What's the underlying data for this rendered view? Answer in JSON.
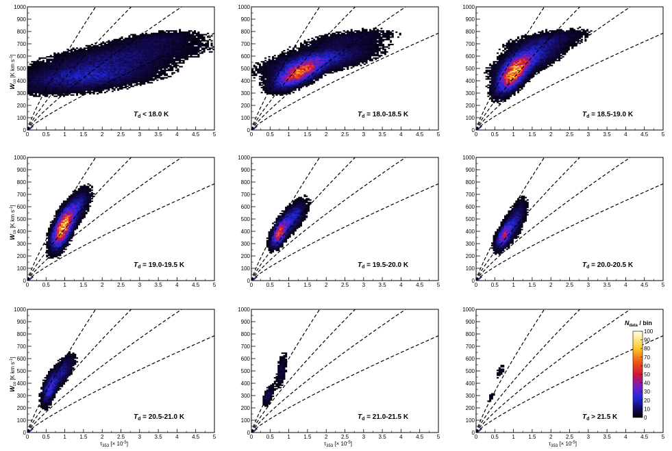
{
  "figure": {
    "ylabel": "W",
    "ylabel_sub": "co",
    "ylabel_unit": "[K km s",
    "ylabel_sup": "-1",
    "ylabel_close": "]",
    "xlabel": "τ",
    "xlabel_sub": "353",
    "xlabel_unit": "[× 10",
    "xlabel_sup": "-5",
    "xlabel_close": "]"
  },
  "chart_data": [
    {
      "type": "heatmap",
      "label_prefix": "T",
      "label_sub": "d",
      "label_text": " < 18.0 K",
      "xlim": [
        0,
        5
      ],
      "ylim": [
        0,
        1000
      ],
      "xticks": [
        "0",
        "0.5",
        "1",
        "1.5",
        "2",
        "2.5",
        "3",
        "3.5",
        "4",
        "4.5",
        "5"
      ],
      "yticks": [
        "0",
        "100",
        "200",
        "300",
        "400",
        "500",
        "600",
        "700",
        "800",
        "900",
        "1000"
      ],
      "blobs": [
        {
          "x": 1.6,
          "y": 440,
          "sx": 0.55,
          "sy": 70,
          "angle": 18,
          "peak": 18
        },
        {
          "x": 2.6,
          "y": 610,
          "sx": 0.65,
          "sy": 60,
          "angle": 25,
          "peak": 10
        },
        {
          "x": 3.5,
          "y": 740,
          "sx": 0.35,
          "sy": 35,
          "angle": 20,
          "peak": 6
        }
      ],
      "dashed_line_slopes": [
        600,
        420,
        300,
        200
      ]
    },
    {
      "type": "heatmap",
      "label_prefix": "T",
      "label_sub": "d",
      "label_text": " = 18.0-18.5 K",
      "xlim": [
        0,
        5
      ],
      "ylim": [
        0,
        1000
      ],
      "xticks": [
        "0",
        "0.5",
        "1",
        "1.5",
        "2",
        "2.5",
        "3",
        "3.5",
        "4",
        "4.5",
        "5"
      ],
      "yticks": [
        "0",
        "100",
        "200",
        "300",
        "400",
        "500",
        "600",
        "700",
        "800",
        "900",
        "1000"
      ],
      "blobs": [
        {
          "x": 1.25,
          "y": 460,
          "sx": 0.22,
          "sy": 45,
          "angle": 40,
          "peak": 60
        },
        {
          "x": 1.8,
          "y": 570,
          "sx": 0.45,
          "sy": 55,
          "angle": 30,
          "peak": 18
        },
        {
          "x": 2.6,
          "y": 740,
          "sx": 0.4,
          "sy": 40,
          "angle": 25,
          "peak": 6
        }
      ],
      "dashed_line_slopes": [
        600,
        420,
        300,
        200
      ]
    },
    {
      "type": "heatmap",
      "label_prefix": "T",
      "label_sub": "d",
      "label_text": " = 18.5-19.0 K",
      "xlim": [
        0,
        5
      ],
      "ylim": [
        0,
        1000
      ],
      "xticks": [
        "0",
        "0.5",
        "1",
        "1.5",
        "2",
        "2.5",
        "3",
        "3.5",
        "4",
        "4.5",
        "5"
      ],
      "yticks": [
        "0",
        "100",
        "200",
        "300",
        "400",
        "500",
        "600",
        "700",
        "800",
        "900",
        "1000"
      ],
      "blobs": [
        {
          "x": 1.0,
          "y": 460,
          "sx": 0.18,
          "sy": 50,
          "angle": 55,
          "peak": 70
        },
        {
          "x": 1.4,
          "y": 580,
          "sx": 0.3,
          "sy": 55,
          "angle": 40,
          "peak": 22
        },
        {
          "x": 1.9,
          "y": 730,
          "sx": 0.35,
          "sy": 40,
          "angle": 30,
          "peak": 8
        }
      ],
      "dashed_line_slopes": [
        600,
        420,
        300,
        200
      ]
    },
    {
      "type": "heatmap",
      "label_prefix": "T",
      "label_sub": "d",
      "label_text": " = 19.0-19.5 K",
      "xlim": [
        0,
        5
      ],
      "ylim": [
        0,
        1000
      ],
      "xticks": [
        "0",
        "0.5",
        "1",
        "1.5",
        "2",
        "2.5",
        "3",
        "3.5",
        "4",
        "4.5",
        "5"
      ],
      "yticks": [
        "0",
        "100",
        "200",
        "300",
        "400",
        "500",
        "600",
        "700",
        "800",
        "900",
        "1000"
      ],
      "blobs": [
        {
          "x": 0.95,
          "y": 430,
          "sx": 0.13,
          "sy": 50,
          "angle": 60,
          "peak": 80
        },
        {
          "x": 1.3,
          "y": 590,
          "sx": 0.15,
          "sy": 50,
          "angle": 55,
          "peak": 18
        }
      ],
      "dashed_line_slopes": [
        600,
        420,
        300,
        200
      ]
    },
    {
      "type": "heatmap",
      "label_prefix": "T",
      "label_sub": "d",
      "label_text": " = 19.5-20.0 K",
      "xlim": [
        0,
        5
      ],
      "ylim": [
        0,
        1000
      ],
      "xticks": [
        "0",
        "0.5",
        "1",
        "1.5",
        "2",
        "2.5",
        "3",
        "3.5",
        "4",
        "4.5",
        "5"
      ],
      "yticks": [
        "0",
        "100",
        "200",
        "300",
        "400",
        "500",
        "600",
        "700",
        "800",
        "900",
        "1000"
      ],
      "blobs": [
        {
          "x": 0.75,
          "y": 390,
          "sx": 0.1,
          "sy": 35,
          "angle": 60,
          "peak": 55
        },
        {
          "x": 1.1,
          "y": 510,
          "sx": 0.15,
          "sy": 45,
          "angle": 55,
          "peak": 20
        }
      ],
      "dashed_line_slopes": [
        600,
        420,
        300,
        200
      ]
    },
    {
      "type": "heatmap",
      "label_prefix": "T",
      "label_sub": "d",
      "label_text": " = 20.0-20.5 K",
      "xlim": [
        0,
        5
      ],
      "ylim": [
        0,
        1000
      ],
      "xticks": [
        "0",
        "0.5",
        "1",
        "1.5",
        "2",
        "2.5",
        "3",
        "3.5",
        "4",
        "4.5",
        "5"
      ],
      "yticks": [
        "0",
        "100",
        "200",
        "300",
        "400",
        "500",
        "600",
        "700",
        "800",
        "900",
        "1000"
      ],
      "blobs": [
        {
          "x": 0.75,
          "y": 370,
          "sx": 0.1,
          "sy": 35,
          "angle": 60,
          "peak": 40
        },
        {
          "x": 1.05,
          "y": 490,
          "sx": 0.13,
          "sy": 50,
          "angle": 60,
          "peak": 15
        }
      ],
      "dashed_line_slopes": [
        600,
        420,
        300,
        200
      ]
    },
    {
      "type": "heatmap",
      "label_prefix": "T",
      "label_sub": "d",
      "label_text": " = 20.5-21.0 K",
      "xlim": [
        0,
        5
      ],
      "ylim": [
        0,
        1000
      ],
      "xticks": [
        "0",
        "0.5",
        "1",
        "1.5",
        "2",
        "2.5",
        "3",
        "3.5",
        "4",
        "4.5",
        "5"
      ],
      "yticks": [
        "0",
        "100",
        "200",
        "300",
        "400",
        "500",
        "600",
        "700",
        "800",
        "900",
        "1000"
      ],
      "blobs": [
        {
          "x": 0.6,
          "y": 360,
          "sx": 0.1,
          "sy": 40,
          "angle": 65,
          "peak": 25
        },
        {
          "x": 0.95,
          "y": 500,
          "sx": 0.12,
          "sy": 45,
          "angle": 50,
          "peak": 14
        }
      ],
      "dashed_line_slopes": [
        600,
        420,
        300,
        200
      ]
    },
    {
      "type": "heatmap",
      "label_prefix": "T",
      "label_sub": "d",
      "label_text": " = 21.0-21.5 K",
      "xlim": [
        0,
        5
      ],
      "ylim": [
        0,
        1000
      ],
      "xticks": [
        "0",
        "0.5",
        "1",
        "1.5",
        "2",
        "2.5",
        "3",
        "3.5",
        "4",
        "4.5",
        "5"
      ],
      "yticks": [
        "0",
        "100",
        "200",
        "300",
        "400",
        "500",
        "600",
        "700",
        "800",
        "900",
        "1000"
      ],
      "blobs": [
        {
          "x": 0.45,
          "y": 300,
          "sx": 0.06,
          "sy": 25,
          "angle": 60,
          "peak": 12
        },
        {
          "x": 0.8,
          "y": 500,
          "sx": 0.08,
          "sy": 40,
          "angle": 70,
          "peak": 8
        }
      ],
      "dashed_line_slopes": [
        600,
        420,
        300,
        200
      ]
    },
    {
      "type": "heatmap",
      "label_prefix": "T",
      "label_sub": "d",
      "label_text": " > 21.5 K",
      "xlim": [
        0,
        5
      ],
      "ylim": [
        0,
        1000
      ],
      "xticks": [
        "0",
        "0.5",
        "1",
        "1.5",
        "2",
        "2.5",
        "3",
        "3.5",
        "4",
        "4.5",
        "5"
      ],
      "yticks": [
        "0",
        "100",
        "200",
        "300",
        "400",
        "500",
        "600",
        "700",
        "800",
        "900",
        "1000"
      ],
      "blobs": [
        {
          "x": 0.4,
          "y": 290,
          "sx": 0.04,
          "sy": 15,
          "angle": 60,
          "peak": 5
        },
        {
          "x": 0.65,
          "y": 500,
          "sx": 0.06,
          "sy": 20,
          "angle": 60,
          "peak": 4
        }
      ],
      "dashed_line_slopes": [
        600,
        420,
        300,
        200
      ]
    }
  ],
  "colorbar": {
    "title": "N",
    "title_sub": "data",
    "title_rest": " / bin",
    "min": 0,
    "max": 100,
    "ticks": [
      "0",
      "10",
      "20",
      "30",
      "40",
      "50",
      "60",
      "70",
      "80",
      "90",
      "100"
    ],
    "colormap": "ROOT rainbow (black-blue-purple-red-orange-yellow-white)"
  }
}
